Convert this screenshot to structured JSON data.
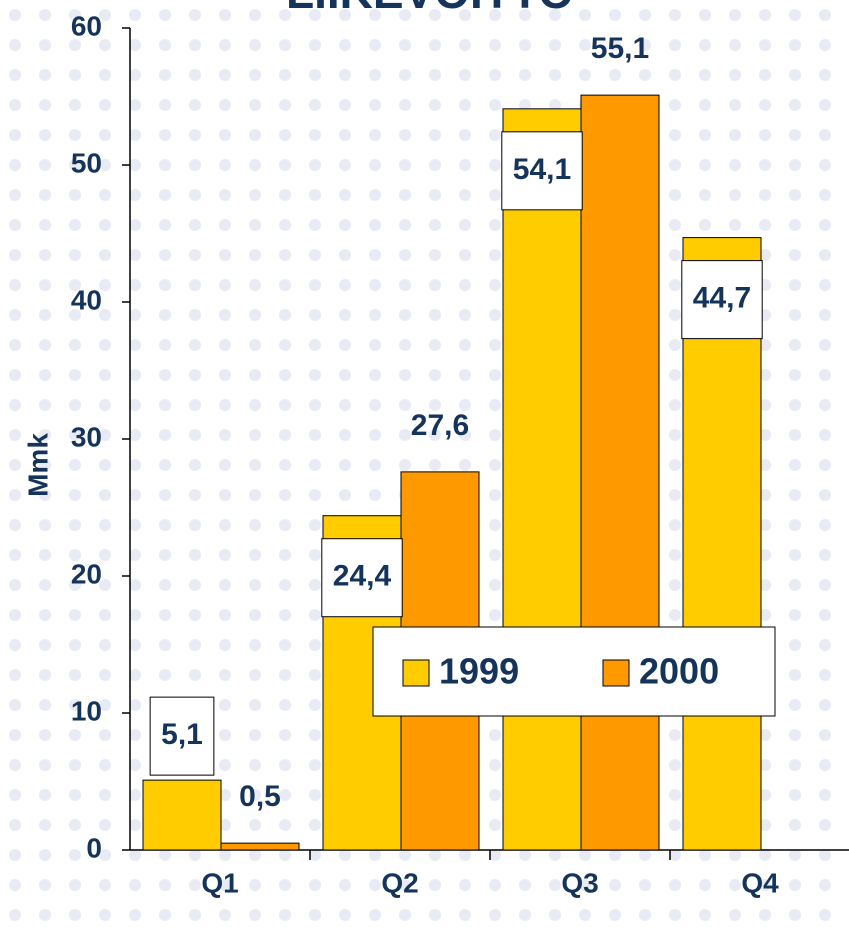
{
  "chart_data": {
    "type": "bar",
    "title": "LIIKEVOITTO",
    "ylabel": "Mmk",
    "categories": [
      "Q1",
      "Q2",
      "Q3",
      "Q4"
    ],
    "series": [
      {
        "name": "1999",
        "color": "#ffcc00",
        "values": [
          5.1,
          24.4,
          54.1,
          44.7
        ],
        "value_labels": [
          "5,1",
          "24,4",
          "54,1",
          "44,7"
        ]
      },
      {
        "name": "2000",
        "color": "#ff9900",
        "values": [
          0.5,
          27.6,
          55.1,
          null
        ],
        "value_labels": [
          "0,5",
          "27,6",
          "55,1",
          null
        ]
      }
    ],
    "ylim": [
      0,
      60
    ],
    "yticks": [
      0,
      10,
      20,
      30,
      40,
      50,
      60
    ],
    "grid": false
  }
}
